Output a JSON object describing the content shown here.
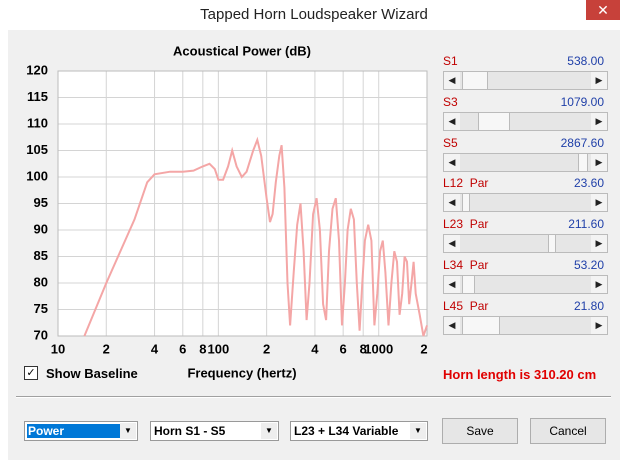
{
  "window": {
    "title": "Tapped Horn Loudspeaker Wizard"
  },
  "chart_data": {
    "type": "line",
    "title": "Acoustical Power (dB)",
    "x_label": "Frequency (hertz)",
    "log_x": true,
    "grid": true,
    "color": "#f4a6a6",
    "xlim": [
      10,
      2000
    ],
    "ylim": [
      70,
      120
    ],
    "xticks": [
      10,
      {
        "value": 20,
        "label": "2"
      },
      {
        "value": 40,
        "label": "4"
      },
      {
        "value": 60,
        "label": "6"
      },
      {
        "value": 80,
        "label": "8"
      },
      100,
      {
        "value": 200,
        "label": "2"
      },
      {
        "value": 400,
        "label": "4"
      },
      {
        "value": 600,
        "label": "6"
      },
      {
        "value": 800,
        "label": "8"
      },
      1000,
      {
        "value": 2000,
        "label": "2"
      }
    ],
    "yticks": [
      70,
      75,
      80,
      85,
      90,
      95,
      100,
      105,
      110,
      115,
      120
    ],
    "x": [
      14.6,
      20,
      30,
      36,
      40,
      50,
      60,
      70,
      80,
      88,
      95,
      100,
      107,
      115,
      122,
      130,
      140,
      150,
      165,
      175,
      185,
      200,
      210,
      218,
      228,
      240,
      248,
      258,
      270,
      280,
      295,
      310,
      325,
      340,
      355,
      370,
      390,
      410,
      430,
      450,
      470,
      490,
      515,
      540,
      565,
      590,
      615,
      640,
      670,
      700,
      730,
      760,
      790,
      820,
      860,
      900,
      940,
      980,
      1020,
      1060,
      1100,
      1150,
      1200,
      1250,
      1300,
      1350,
      1400,
      1450,
      1500,
      1550,
      1600,
      1650,
      1700,
      1800,
      1900,
      2000
    ],
    "values": [
      70,
      80,
      92,
      99,
      100.5,
      101,
      101,
      101.2,
      102,
      102.5,
      101.5,
      99.5,
      99.5,
      102,
      105,
      102,
      100,
      101,
      105,
      107,
      104,
      96,
      91.5,
      93,
      99,
      104,
      106,
      98,
      80,
      72,
      82,
      91,
      95,
      86,
      73,
      80,
      93,
      96,
      90,
      76,
      73,
      86,
      94,
      96,
      88,
      72,
      80,
      90,
      94,
      92,
      80,
      71,
      80,
      88,
      91,
      88,
      72,
      78,
      86,
      88,
      82,
      72,
      80,
      86,
      84,
      74,
      78,
      85,
      84,
      76,
      80,
      84,
      78,
      74,
      70,
      72
    ]
  },
  "sliders": [
    {
      "label": "S1",
      "value": "538.00"
    },
    {
      "label": "S3",
      "value": "1079.00"
    },
    {
      "label": "S5",
      "value": "2867.60"
    },
    {
      "label": "L12  Par",
      "value": "23.60"
    },
    {
      "label": "L23  Par",
      "value": "211.60"
    },
    {
      "label": "L34  Par",
      "value": "53.20"
    },
    {
      "label": "L45  Par",
      "value": "21.80"
    }
  ],
  "checkbox": {
    "label": "Show Baseline"
  },
  "status": "Horn length is 310.20 cm",
  "combos": [
    "Power",
    "Horn S1 - S5",
    "L23 + L34 Variable"
  ],
  "buttons": [
    "Save",
    "Cancel"
  ]
}
